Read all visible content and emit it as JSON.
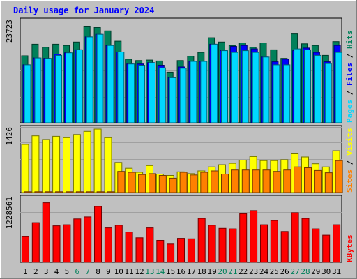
{
  "chart_data": [
    {
      "type": "bar",
      "title": "Daily usage for January 2024",
      "ymax_label": "23723",
      "ylim": [
        0,
        23723
      ],
      "categories": [
        "1",
        "2",
        "3",
        "4",
        "5",
        "6",
        "7",
        "8",
        "9",
        "10",
        "11",
        "12",
        "13",
        "14",
        "15",
        "16",
        "17",
        "18",
        "19",
        "20",
        "21",
        "22",
        "23",
        "24",
        "25",
        "26",
        "27",
        "28",
        "29",
        "30",
        "31"
      ],
      "series": [
        {
          "name": "Hits",
          "color": "#00805a",
          "values": [
            15600,
            18300,
            17600,
            18300,
            18000,
            18800,
            22500,
            22200,
            21400,
            19000,
            14800,
            14500,
            14600,
            14400,
            11800,
            14500,
            15500,
            16400,
            19800,
            18800,
            18000,
            18600,
            17600,
            18600,
            17000,
            15000,
            20700,
            18400,
            18000,
            15700,
            18900
          ]
        },
        {
          "name": "Files",
          "color": "#0000ff",
          "values": [
            13500,
            15100,
            15000,
            16000,
            16300,
            17000,
            20000,
            20600,
            18000,
            16500,
            13700,
            13700,
            14000,
            13400,
            10500,
            13000,
            14300,
            14300,
            18300,
            16800,
            17800,
            18000,
            17200,
            15300,
            14200,
            14800,
            16800,
            17400,
            16400,
            14200,
            18000
          ]
        },
        {
          "name": "Pages",
          "color": "#00d8ff",
          "values": [
            13500,
            15100,
            15000,
            15700,
            16300,
            17000,
            20000,
            20600,
            18000,
            16500,
            13700,
            13400,
            14000,
            12800,
            10500,
            12700,
            14300,
            14300,
            18300,
            16800,
            16400,
            16800,
            16400,
            15300,
            13500,
            13500,
            17200,
            17000,
            15700,
            13800,
            16400
          ]
        }
      ]
    },
    {
      "type": "bar",
      "ymax_label": "1426",
      "ylim": [
        0,
        1426
      ],
      "categories": [
        "1",
        "2",
        "3",
        "4",
        "5",
        "6",
        "7",
        "8",
        "9",
        "10",
        "11",
        "12",
        "13",
        "14",
        "15",
        "16",
        "17",
        "18",
        "19",
        "20",
        "21",
        "22",
        "23",
        "24",
        "25",
        "26",
        "27",
        "28",
        "29",
        "30",
        "31"
      ],
      "series": [
        {
          "name": "Visits",
          "color": "#ffff00",
          "values": [
            1070,
            1260,
            1180,
            1250,
            1220,
            1290,
            1360,
            1410,
            1220,
            670,
            540,
            450,
            600,
            410,
            380,
            460,
            420,
            480,
            570,
            620,
            650,
            720,
            800,
            710,
            710,
            730,
            860,
            790,
            640,
            570,
            930
          ]
        },
        {
          "name": "Sites",
          "color": "#ff8000",
          "values": [
            18,
            18,
            18,
            18,
            18,
            18,
            18,
            18,
            18,
            470,
            450,
            400,
            420,
            380,
            320,
            450,
            390,
            450,
            480,
            410,
            500,
            500,
            500,
            500,
            470,
            500,
            570,
            550,
            490,
            440,
            710
          ]
        }
      ]
    },
    {
      "type": "bar",
      "ymax_label": "1228561",
      "ylim": [
        0,
        1228561
      ],
      "categories": [
        "1",
        "2",
        "3",
        "4",
        "5",
        "6",
        "7",
        "8",
        "9",
        "10",
        "11",
        "12",
        "13",
        "14",
        "15",
        "16",
        "17",
        "18",
        "19",
        "20",
        "21",
        "22",
        "23",
        "24",
        "25",
        "26",
        "27",
        "28",
        "29",
        "30",
        "31"
      ],
      "series": [
        {
          "name": "KBytes",
          "color": "#ff0000",
          "values": [
            490000,
            760000,
            1140000,
            700000,
            720000,
            830000,
            870000,
            1070000,
            660000,
            710000,
            580000,
            470000,
            660000,
            420000,
            350000,
            460000,
            450000,
            840000,
            710000,
            650000,
            640000,
            930000,
            990000,
            720000,
            800000,
            590000,
            950000,
            840000,
            640000,
            520000,
            720000
          ]
        }
      ]
    }
  ],
  "weekend_days": [
    6,
    7,
    13,
    14,
    20,
    21,
    27,
    28
  ],
  "colors": {
    "background": "#c0c0c0",
    "title": "#0000ff",
    "weekday_label": "#000000",
    "weekend_label": "#00805a"
  }
}
